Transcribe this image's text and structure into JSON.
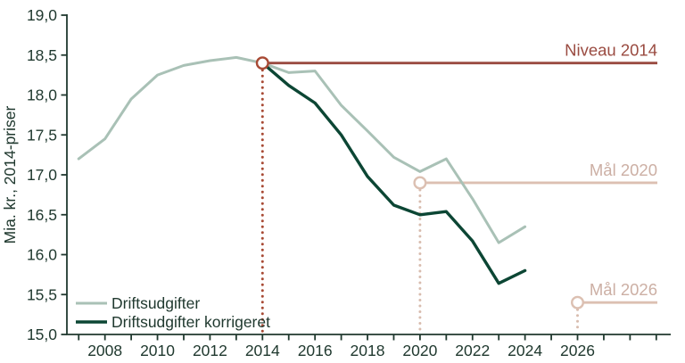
{
  "figure": {
    "background": "#ffffff",
    "text_color": "#20392f",
    "axis_color": "#20392f"
  },
  "chart_data": {
    "type": "line",
    "title": "",
    "xlabel": "",
    "ylabel": "Mia. kr., 2014-priser",
    "ylim": [
      15.0,
      19.0
    ],
    "xlim": [
      2006.55,
      2029.55
    ],
    "grid": false,
    "yticks": [
      {
        "value": 15.0,
        "label": "15,0"
      },
      {
        "value": 15.5,
        "label": "15,5"
      },
      {
        "value": 16.0,
        "label": "16,0"
      },
      {
        "value": 16.5,
        "label": "16,5"
      },
      {
        "value": 17.0,
        "label": "17,0"
      },
      {
        "value": 17.5,
        "label": "17,5"
      },
      {
        "value": 18.0,
        "label": "18,0"
      },
      {
        "value": 18.5,
        "label": "18,5"
      },
      {
        "value": 19.0,
        "label": "19,0"
      }
    ],
    "xticks_minor": {
      "start": 2007,
      "end": 2029,
      "step": 1
    },
    "xtick_labels": [
      {
        "value": 2008,
        "label": "2008"
      },
      {
        "value": 2010,
        "label": "2010"
      },
      {
        "value": 2012,
        "label": "2012"
      },
      {
        "value": 2014,
        "label": "2014"
      },
      {
        "value": 2016,
        "label": "2016"
      },
      {
        "value": 2018,
        "label": "2018"
      },
      {
        "value": 2020,
        "label": "2020"
      },
      {
        "value": 2022,
        "label": "2022"
      },
      {
        "value": 2024,
        "label": "2024"
      },
      {
        "value": 2026,
        "label": "2026"
      }
    ],
    "series": [
      {
        "name": "Driftsudgifter",
        "color": "#a9c1b6",
        "x": [
          2007,
          2008,
          2009,
          2010,
          2011,
          2012,
          2013,
          2014,
          2015,
          2016,
          2017,
          2018,
          2019,
          2020,
          2021,
          2022,
          2023,
          2024
        ],
        "values": [
          17.2,
          17.45,
          17.95,
          18.25,
          18.37,
          18.43,
          18.47,
          18.4,
          18.28,
          18.3,
          17.87,
          17.55,
          17.22,
          17.04,
          17.2,
          16.7,
          16.15,
          16.35
        ]
      },
      {
        "name": "Driftsudgifter korrigeret",
        "color": "#0c4634",
        "x": [
          2014,
          2015,
          2016,
          2017,
          2018,
          2019,
          2020,
          2021,
          2022,
          2023,
          2024
        ],
        "values": [
          18.4,
          18.12,
          17.9,
          17.5,
          16.98,
          16.62,
          16.5,
          16.54,
          16.17,
          15.64,
          15.8
        ]
      }
    ],
    "reference_lines": [
      {
        "name": "niveau-2014",
        "label": "Niveau 2014",
        "value": 18.4,
        "marker_year": 2014,
        "line_color": "#9a4b41",
        "guide_color": "#a84a35",
        "label_color": "#9a4b41"
      },
      {
        "name": "maal-2020",
        "label": "Mål 2020",
        "value": 16.9,
        "marker_year": 2020,
        "line_color": "#dcc0b2",
        "guide_color": "#d8bcae",
        "label_color": "#ccafa4"
      },
      {
        "name": "maal-2026",
        "label": "Mål 2026",
        "value": 15.4,
        "marker_year": 2026,
        "line_color": "#dcc0b2",
        "guide_color": "#d8bcae",
        "label_color": "#ccafa4"
      }
    ],
    "legend": {
      "items": [
        "Driftsudgifter",
        "Driftsudgifter korrigeret"
      ],
      "position": "inside-bottom-left"
    }
  }
}
